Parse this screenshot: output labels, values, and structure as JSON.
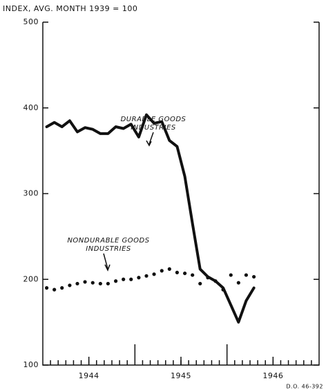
{
  "chart_data": {
    "type": "line",
    "axis_title": "INDEX, AVG. MONTH 1939 = 100",
    "annotations": [
      {
        "lines": [
          "DURABLE GOODS",
          "INDUSTRIES"
        ]
      },
      {
        "lines": [
          "NONDURABLE GOODS",
          "INDUSTRIES"
        ]
      }
    ],
    "footnote": "D.O. 46-392",
    "x": [
      1944.042,
      1944.125,
      1944.208,
      1944.292,
      1944.375,
      1944.458,
      1944.542,
      1944.625,
      1944.708,
      1944.792,
      1944.875,
      1944.958,
      1945.042,
      1945.125,
      1945.208,
      1945.292,
      1945.375,
      1945.458,
      1945.542,
      1945.625,
      1945.708,
      1945.792,
      1945.875,
      1945.958,
      1946.042,
      1946.125,
      1946.208,
      1946.292
    ],
    "series": [
      {
        "color": "#111111",
        "style": "solid",
        "values": [
          378,
          383,
          378,
          385,
          372,
          377,
          375,
          370,
          370,
          378,
          376,
          381,
          366,
          392,
          382,
          384,
          362,
          355,
          320,
          265,
          212,
          203,
          198,
          190,
          170,
          150,
          175,
          190
        ]
      },
      {
        "color": "#111111",
        "style": "dotted",
        "values": [
          190,
          188,
          190,
          193,
          195,
          197,
          196,
          195,
          195,
          198,
          200,
          200,
          202,
          204,
          206,
          210,
          212,
          208,
          207,
          205,
          195,
          202,
          198,
          188,
          205,
          196,
          205,
          203
        ]
      }
    ],
    "xlim": [
      1944,
      1947
    ],
    "xticks": [
      {
        "value": 1944.5,
        "label": "1944"
      },
      {
        "value": 1945.5,
        "label": "1945"
      },
      {
        "value": 1946.5,
        "label": "1946"
      }
    ],
    "ylim": [
      100,
      500
    ],
    "yticks": [
      100,
      200,
      300,
      400,
      500
    ],
    "grid": false
  }
}
